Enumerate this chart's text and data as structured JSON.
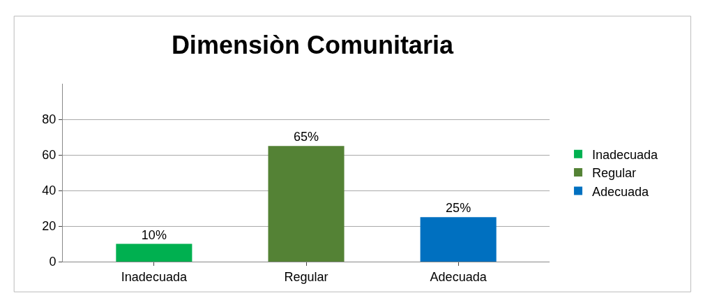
{
  "chart_data": {
    "type": "bar",
    "title": "Dimensiòn Comunitaria",
    "categories": [
      "Inadecuada",
      "Regular",
      "Adecuada"
    ],
    "series": [
      {
        "name": "Inadecuada",
        "color": "#00b050",
        "values": [
          10,
          null,
          null
        ],
        "value_labels": [
          "10%",
          null,
          null
        ]
      },
      {
        "name": "Regular",
        "color": "#548235",
        "values": [
          null,
          65,
          null
        ],
        "value_labels": [
          null,
          "65%",
          null
        ]
      },
      {
        "name": "Adecuada",
        "color": "#0070c0",
        "values": [
          null,
          null,
          25
        ],
        "value_labels": [
          null,
          null,
          "25%"
        ]
      }
    ],
    "ylim": [
      0,
      100
    ],
    "yticks": [
      0,
      20,
      40,
      60,
      80
    ],
    "grid": "y",
    "legend": "right"
  }
}
